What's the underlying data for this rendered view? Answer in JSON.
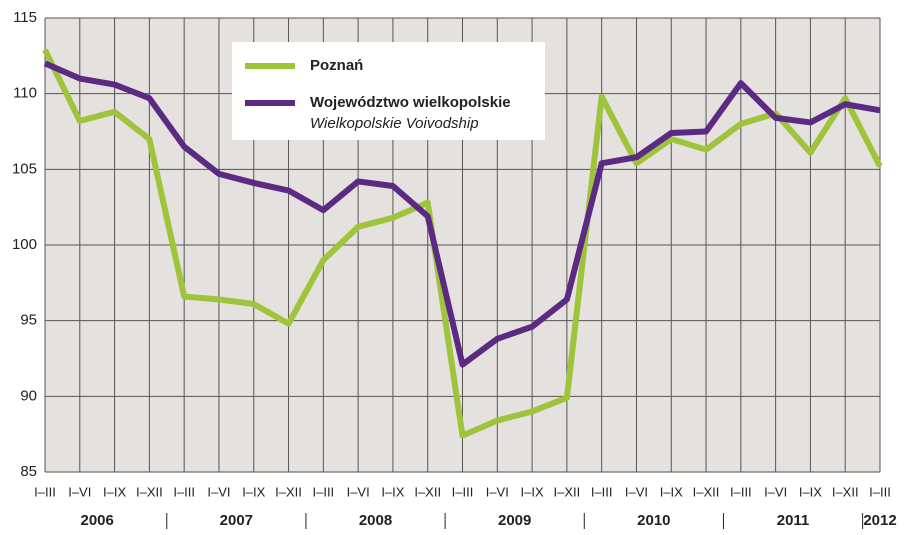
{
  "chart_data": {
    "type": "line",
    "categories": [
      "I–III",
      "I–VI",
      "I–IX",
      "I–XII",
      "I–III",
      "I–VI",
      "I–IX",
      "I–XII",
      "I–III",
      "I–VI",
      "I–IX",
      "I–XII",
      "I–III",
      "I–VI",
      "I–IX",
      "I–XII",
      "I–III",
      "I–VI",
      "I–IX",
      "I–XII",
      "I–III",
      "I–VI",
      "I–IX",
      "I–XII",
      "I–III"
    ],
    "years": [
      "2006",
      "2007",
      "2008",
      "2009",
      "2010",
      "2011",
      "2012"
    ],
    "series": [
      {
        "name": "Poznań",
        "color": "#9dc43b",
        "values": [
          112.9,
          108.2,
          108.8,
          107.0,
          96.6,
          96.4,
          96.1,
          94.8,
          99.0,
          101.2,
          101.8,
          102.8,
          87.4,
          88.4,
          89.0,
          89.9,
          109.8,
          105.4,
          107.0,
          106.3,
          108.0,
          108.7,
          106.1,
          109.7,
          105.2
        ]
      },
      {
        "name": "Województwo wielkopolskie",
        "name_en": "Wielkopolskie Voivodship",
        "color": "#5c2a82",
        "values": [
          112.0,
          111.0,
          110.6,
          109.7,
          106.5,
          104.7,
          104.1,
          103.6,
          102.3,
          104.2,
          103.9,
          101.9,
          92.1,
          93.8,
          94.6,
          96.4,
          105.4,
          105.8,
          107.4,
          107.5,
          110.7,
          108.4,
          108.1,
          109.3,
          108.9
        ]
      }
    ],
    "ylim": [
      85,
      115
    ],
    "yticks": [
      85,
      90,
      95,
      100,
      105,
      110,
      115
    ],
    "grid": true
  }
}
